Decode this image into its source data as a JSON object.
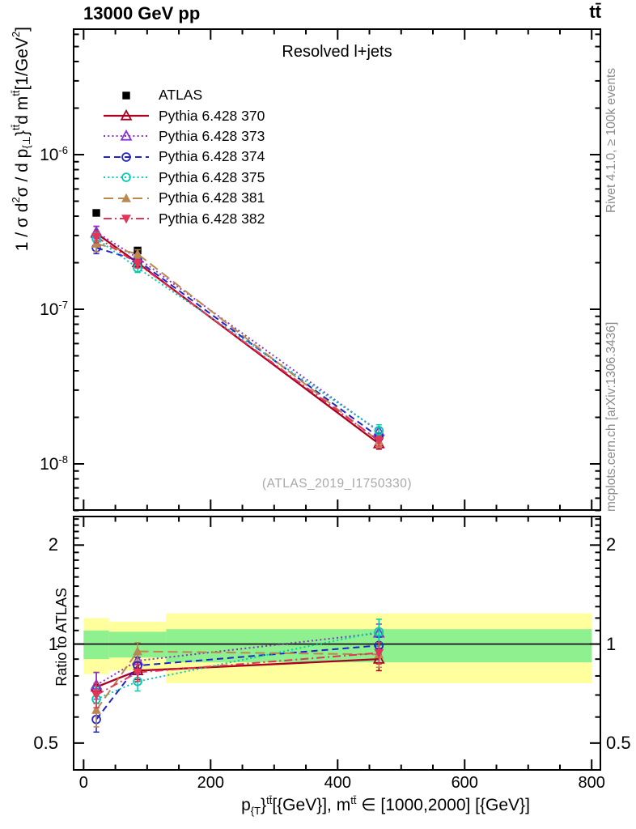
{
  "header": {
    "left_title": "13000 GeV pp",
    "right_title": "tt̄"
  },
  "subtitle": "Resolved l+jets",
  "watermark": "(ATLAS_2019_I1750330)",
  "side_notes": {
    "top": "Rivet 4.1.0, ≥ 100k events",
    "bottom": "mcplots.cern.ch [arXiv:1306.3436]"
  },
  "axes": {
    "x_label_rich": "p_{{T}}^{tt̄}[{GeV}], m^{tt̄} ∈ [1000,2000] [{GeV}]",
    "y_label_rich": "1 / σ d^{2}σ /  d p_{{⊥}}^{tt̄}d m^{tt̄}[1/GeV^{2}]",
    "ratio_label": "Ratio to ATLAS"
  },
  "chart_data": {
    "type": "line",
    "x_unit": "GeV",
    "xlim": [
      -17,
      815
    ],
    "xticks_major": [
      0,
      200,
      400,
      600,
      800
    ],
    "xtick_minor_step": 50,
    "x": [
      20,
      85,
      465
    ],
    "bin_edges": [
      0,
      40,
      130,
      800
    ],
    "main_panel": {
      "ylog": true,
      "ylim": [
        4.97e-09,
        6.56e-06
      ],
      "ytick_labels": [
        {
          "v": 1e-06,
          "label": "10^{-6}"
        },
        {
          "v": 1e-07,
          "label": "10^{-7}"
        },
        {
          "v": 1e-08,
          "label": "10^{-8}"
        }
      ]
    },
    "ratio_panel": {
      "ylog": true,
      "ylim": [
        0.412,
        2.457
      ],
      "yticks": [
        {
          "v": 0.5,
          "label": "0.5"
        },
        {
          "v": 1,
          "label": "1"
        },
        {
          "v": 2,
          "label": "2"
        }
      ],
      "reference_line": 1,
      "band_colors": {
        "yellow": "#ffff9e",
        "green": "#8ff08f"
      },
      "bands": [
        {
          "x": [
            0,
            40
          ],
          "yellow": [
            0.81,
            1.2
          ],
          "green": [
            0.9,
            1.1
          ]
        },
        {
          "x": [
            40,
            130
          ],
          "yellow": [
            0.83,
            1.17
          ],
          "green": [
            0.91,
            1.09
          ]
        },
        {
          "x": [
            130,
            800
          ],
          "yellow": [
            0.76,
            1.24
          ],
          "green": [
            0.88,
            1.11
          ]
        }
      ]
    },
    "series": [
      {
        "name": "ATLAS",
        "color": "#000000",
        "marker": "square",
        "line": "none",
        "show_in_ratio": false,
        "values": [
          4.2e-07,
          2.4e-07,
          1.5e-08
        ],
        "ratio": [
          1,
          1,
          1
        ],
        "ratio_err": [
          0,
          0,
          0
        ]
      },
      {
        "name": "Pythia 6.428 370",
        "color": "#aa0022",
        "marker": "triangle-open",
        "line": "solid",
        "values": [
          3.1e-07,
          2e-07,
          1.35e-08
        ],
        "ratio": [
          0.74,
          0.83,
          0.9
        ],
        "ratio_err": [
          0.08,
          0.05,
          0.07
        ]
      },
      {
        "name": "Pythia 6.428 373",
        "color": "#8833cc",
        "marker": "triangle-open",
        "line": "dotted",
        "values": [
          3.15e-07,
          2.15e-07,
          1.62e-08
        ],
        "ratio": [
          0.75,
          0.89,
          1.08
        ],
        "ratio_err": [
          0.07,
          0.05,
          0.07
        ]
      },
      {
        "name": "Pythia 6.428 374",
        "color": "#2222cc",
        "marker": "circle-open",
        "line": "dashed",
        "values": [
          2.5e-07,
          2.07e-07,
          1.49e-08
        ],
        "ratio": [
          0.59,
          0.86,
          0.99
        ],
        "ratio_err": [
          0.05,
          0.05,
          0.06
        ]
      },
      {
        "name": "Pythia 6.428 375",
        "color": "#00ccb3",
        "marker": "circle-open",
        "line": "dotted",
        "values": [
          2.86e-07,
          1.85e-07,
          1.64e-08
        ],
        "ratio": [
          0.68,
          0.77,
          1.09
        ],
        "ratio_err": [
          0.06,
          0.05,
          0.1
        ]
      },
      {
        "name": "Pythia 6.428 381",
        "color": "#bb8850",
        "marker": "triangle-filled",
        "line": "longdash",
        "values": [
          2.65e-07,
          2.28e-07,
          1.4e-08
        ],
        "ratio": [
          0.63,
          0.95,
          0.93
        ],
        "ratio_err": [
          0.07,
          0.06,
          0.08
        ]
      },
      {
        "name": "Pythia 6.428 382",
        "color": "#e23558",
        "marker": "triangle-down-filled",
        "line": "dashdot",
        "values": [
          2.94e-07,
          1.97e-07,
          1.41e-08
        ],
        "ratio": [
          0.7,
          0.82,
          0.94
        ],
        "ratio_err": [
          0.06,
          0.05,
          0.07
        ]
      }
    ]
  }
}
